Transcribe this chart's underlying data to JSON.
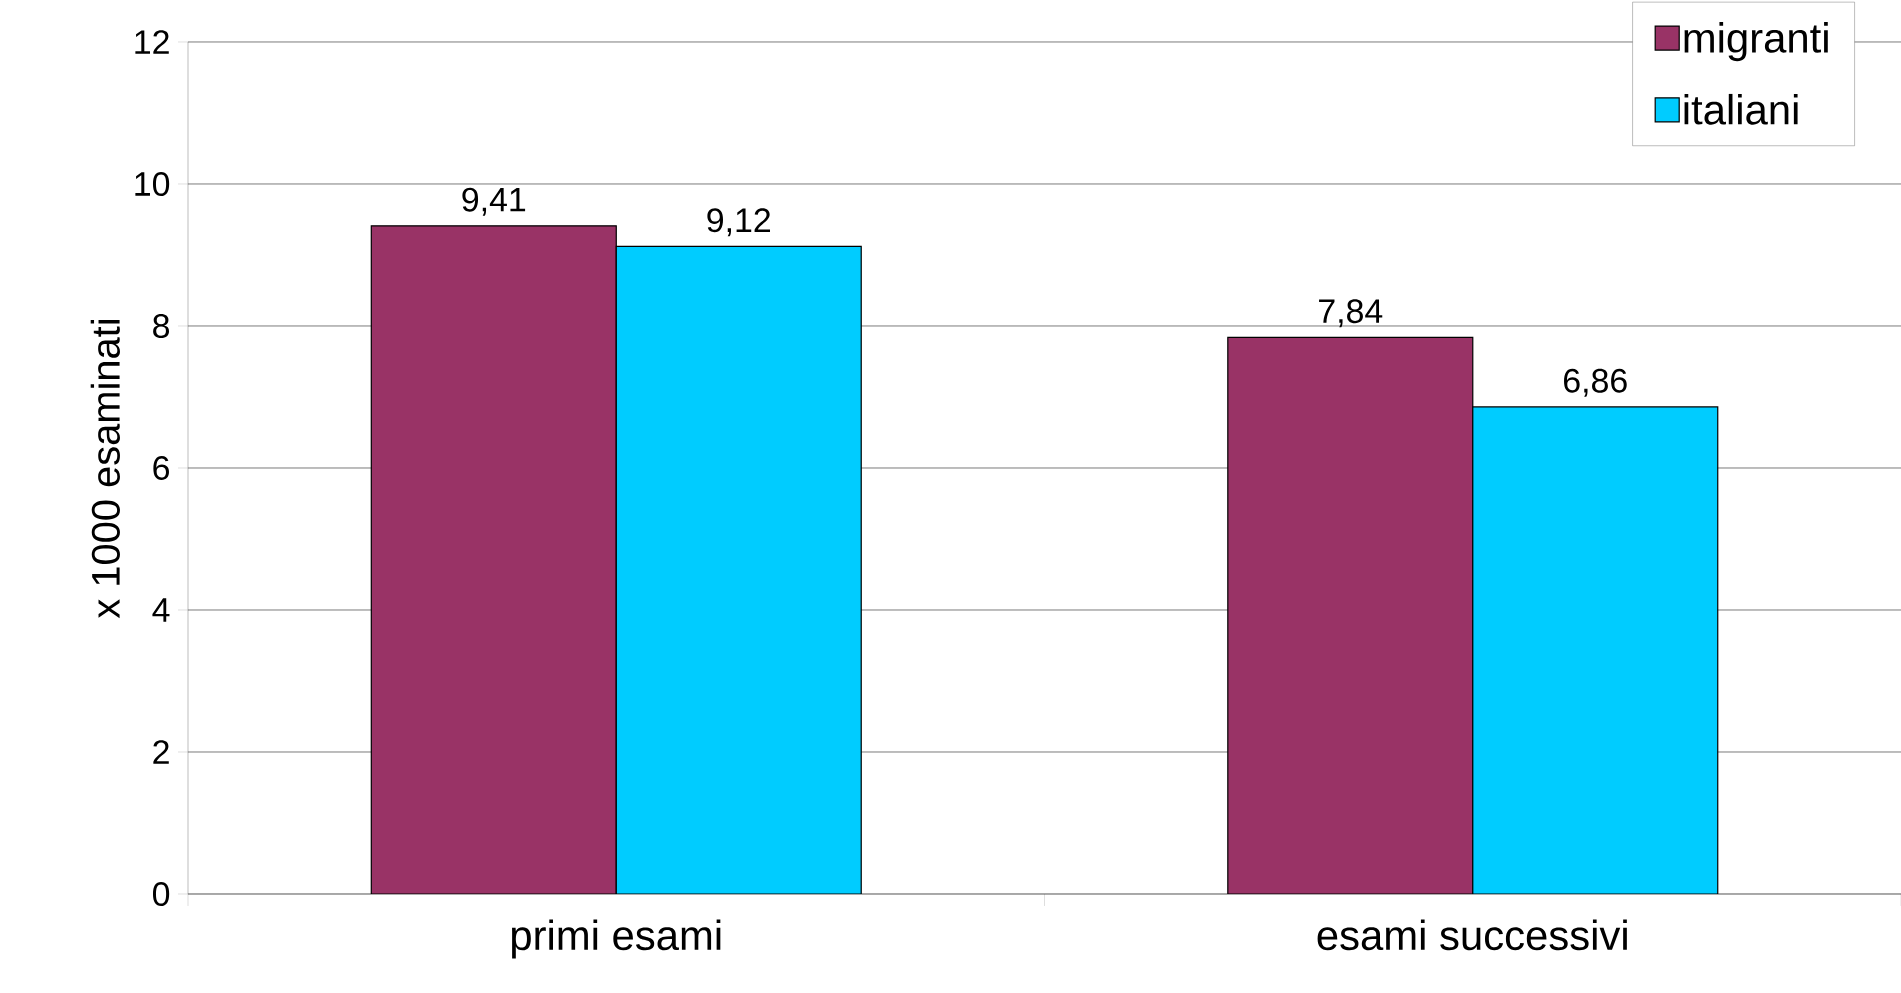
{
  "chart_data": {
    "type": "bar",
    "ylabel": "x 1000 esaminati",
    "categories": [
      "primi esami",
      "esami successivi"
    ],
    "series": [
      {
        "name": "migranti",
        "color": "#993366",
        "values": [
          9.41,
          7.84
        ],
        "value_labels": [
          "9,41",
          "7,84"
        ]
      },
      {
        "name": "italiani",
        "color": "#00ccff",
        "values": [
          9.12,
          6.86
        ],
        "value_labels": [
          "9,12",
          "6,86"
        ]
      }
    ],
    "ylim": [
      0,
      12
    ],
    "yticks": [
      0,
      2,
      4,
      6,
      8,
      10,
      12
    ],
    "grid": "y",
    "legend": "top right"
  }
}
